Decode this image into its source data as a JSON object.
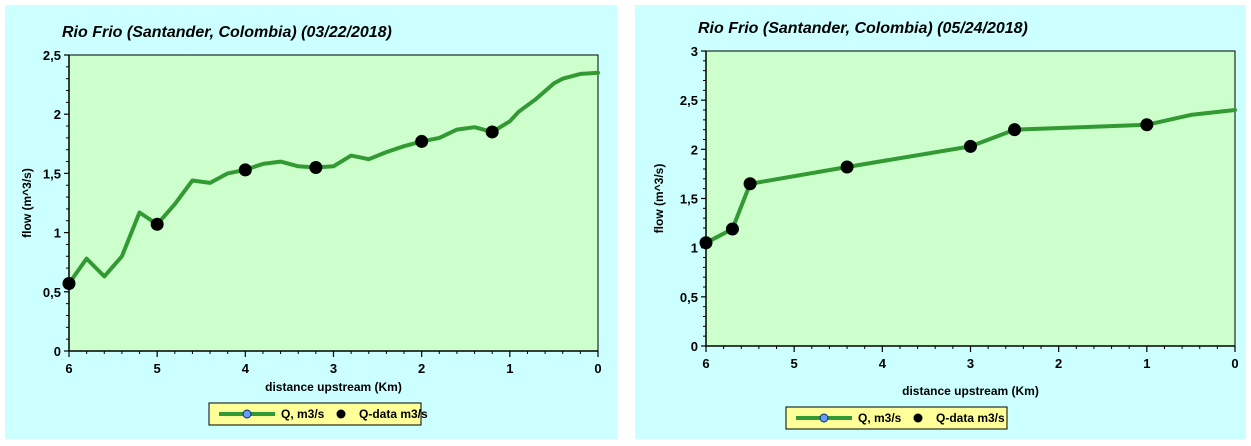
{
  "chart_data": [
    {
      "type": "line",
      "title": "Rio Frio (Santander, Colombia) (03/22/2018)",
      "xlabel": "distance upstream (Km)",
      "ylabel": "flow (m^3/s)",
      "xlim": [
        6,
        0
      ],
      "ylim": [
        0,
        2.5
      ],
      "x_reversed": true,
      "x_ticks": [
        "6",
        "5",
        "4",
        "3",
        "2",
        "1",
        "0"
      ],
      "y_ticks": [
        "0",
        "0,5",
        "1",
        "1,5",
        "2",
        "2,5"
      ],
      "legend_position": "bottom",
      "plot_background": "#ccffcc",
      "panel_background": "#ccffff",
      "series": [
        {
          "name": "Q, m3/s",
          "kind": "line",
          "color": "#339933",
          "x": [
            6.0,
            5.8,
            5.6,
            5.4,
            5.2,
            5.0,
            4.8,
            4.6,
            4.4,
            4.2,
            4.0,
            3.8,
            3.6,
            3.4,
            3.2,
            3.0,
            2.8,
            2.6,
            2.4,
            2.2,
            2.0,
            1.8,
            1.6,
            1.4,
            1.2,
            1.0,
            0.9,
            0.7,
            0.5,
            0.4,
            0.3,
            0.2,
            0.1,
            0.0
          ],
          "y": [
            0.57,
            0.78,
            0.63,
            0.8,
            1.17,
            1.07,
            1.24,
            1.44,
            1.42,
            1.5,
            1.53,
            1.58,
            1.6,
            1.56,
            1.55,
            1.56,
            1.65,
            1.62,
            1.68,
            1.73,
            1.77,
            1.8,
            1.87,
            1.89,
            1.85,
            1.94,
            2.02,
            2.13,
            2.26,
            2.3,
            2.32,
            2.34,
            2.345,
            2.35
          ]
        },
        {
          "name": "Q-data m3/s",
          "kind": "scatter",
          "color": "#000000",
          "x": [
            6.0,
            5.0,
            4.0,
            3.2,
            2.0,
            1.2
          ],
          "y": [
            0.57,
            1.07,
            1.53,
            1.55,
            1.77,
            1.85
          ]
        }
      ]
    },
    {
      "type": "line",
      "title": "Rio Frio (Santander, Colombia) (05/24/2018)",
      "xlabel": "distance upstream (Km)",
      "ylabel": "flow (m^3/s)",
      "xlim": [
        6,
        0
      ],
      "ylim": [
        0,
        3
      ],
      "x_reversed": true,
      "x_ticks": [
        "6",
        "5",
        "4",
        "3",
        "2",
        "1",
        "0"
      ],
      "y_ticks": [
        "0",
        "0,5",
        "1",
        "1,5",
        "2",
        "2,5",
        "3"
      ],
      "legend_position": "bottom",
      "plot_background": "#ccffcc",
      "panel_background": "#ccffff",
      "series": [
        {
          "name": "Q, m3/s",
          "kind": "line",
          "color": "#339933",
          "x": [
            6.0,
            5.7,
            5.5,
            4.4,
            3.0,
            2.5,
            1.0,
            0.5,
            0.0
          ],
          "y": [
            1.05,
            1.19,
            1.65,
            1.82,
            2.03,
            2.2,
            2.25,
            2.35,
            2.4
          ]
        },
        {
          "name": "Q-data m3/s",
          "kind": "scatter",
          "color": "#000000",
          "x": [
            6.0,
            5.7,
            5.5,
            4.4,
            3.0,
            2.5,
            1.0
          ],
          "y": [
            1.05,
            1.19,
            1.65,
            1.82,
            2.03,
            2.2,
            2.25
          ]
        }
      ]
    }
  ]
}
